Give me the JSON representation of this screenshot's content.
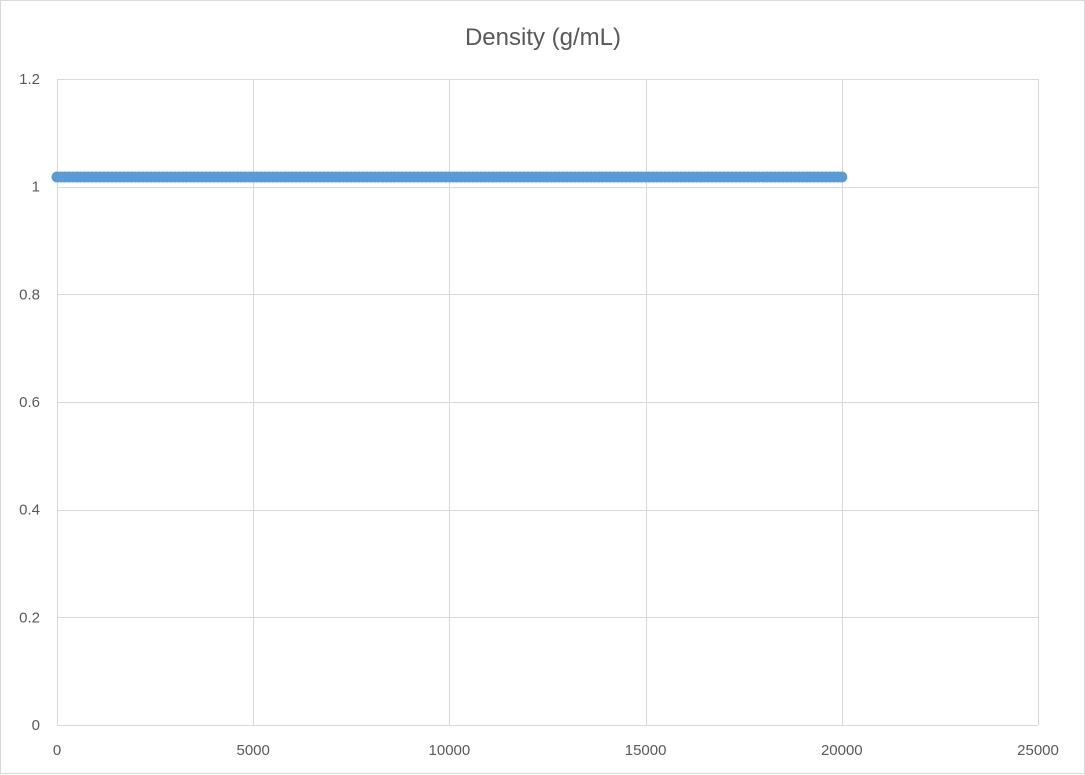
{
  "chart_data": {
    "type": "scatter",
    "title": "Density (g/mL)",
    "xlabel": "",
    "ylabel": "",
    "xlim": [
      0,
      25000
    ],
    "ylim": [
      0,
      1.2
    ],
    "x_ticks": [
      "0",
      "5000",
      "10000",
      "15000",
      "20000",
      "25000"
    ],
    "y_ticks": [
      "0",
      "0.2",
      "0.4",
      "0.6",
      "0.8",
      "1",
      "1.2"
    ],
    "grid": true,
    "legend": "none",
    "series": [
      {
        "color": "#5b9bd5",
        "x_start": 0,
        "x_end": 20000,
        "x_step": 100,
        "y_constant": 1.018
      }
    ]
  }
}
